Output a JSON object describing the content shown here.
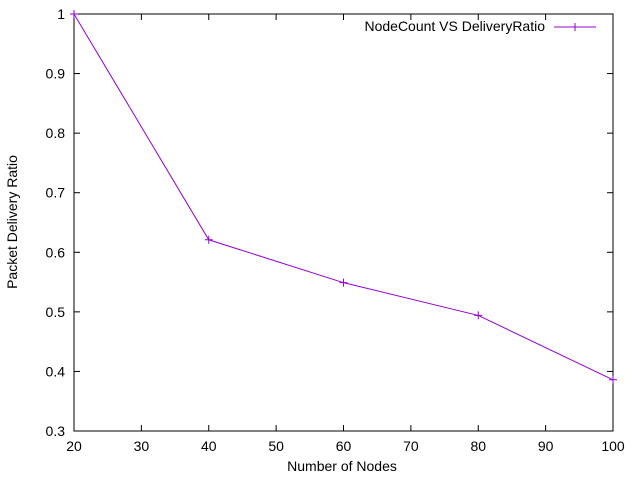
{
  "chart_data": {
    "type": "line",
    "title": "",
    "xlabel": "Number of Nodes",
    "ylabel": "Packet Delivery Ratio",
    "xlim": [
      20,
      100
    ],
    "ylim": [
      0.3,
      1
    ],
    "xticks": [
      "20",
      "30",
      "40",
      "50",
      "60",
      "70",
      "80",
      "90",
      "100"
    ],
    "yticks": [
      "0.3",
      "0.4",
      "0.5",
      "0.6",
      "0.7",
      "0.8",
      "0.9",
      "1"
    ],
    "grid": false,
    "legend_position": "top-right",
    "series": [
      {
        "name": "NodeCount VS DeliveryRatio",
        "color": "#9400d3",
        "marker": "plus",
        "x": [
          20,
          40,
          60,
          80,
          100
        ],
        "y": [
          1.0,
          0.621,
          0.549,
          0.494,
          0.386
        ]
      }
    ]
  }
}
